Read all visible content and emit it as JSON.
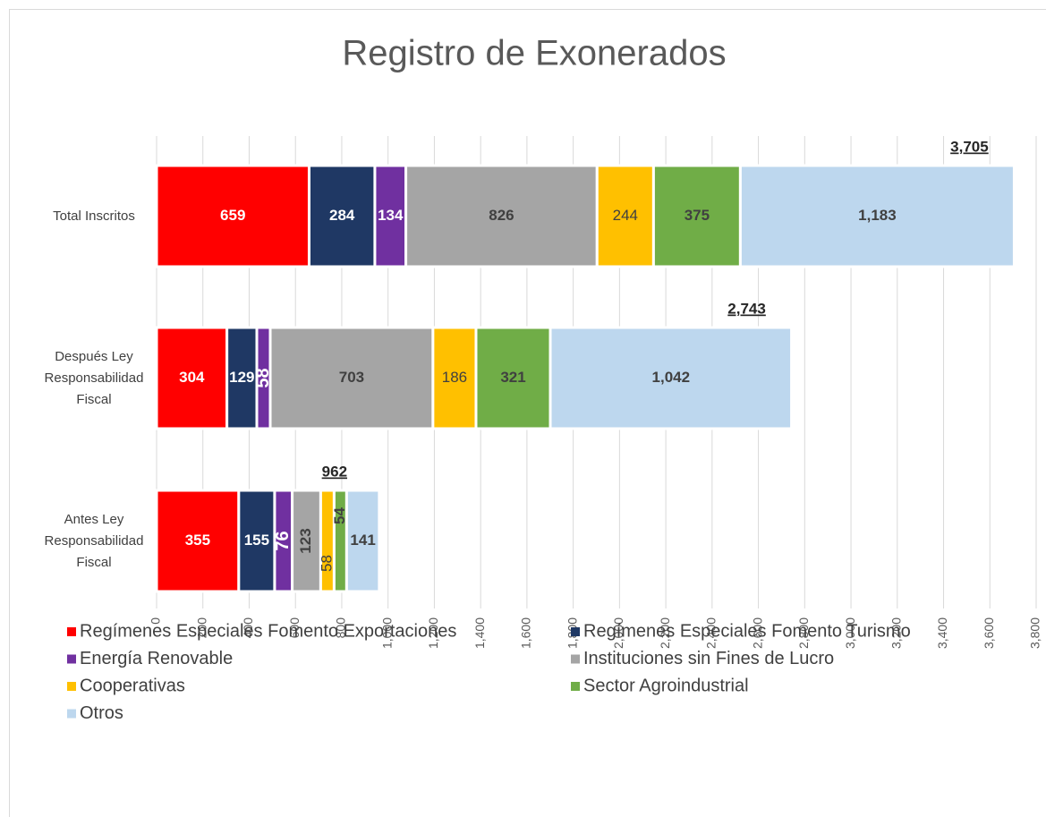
{
  "chart_data": {
    "type": "stacked_barh",
    "title": "Registro de Exonerados",
    "categories": [
      "Total Inscritos",
      "Después Ley Responsabilidad Fiscal",
      "Antes Ley Responsabilidad Fiscal"
    ],
    "series": [
      {
        "name": "Regímenes Especiales Fomento Exportaciones",
        "color": "#ff0000",
        "values": [
          659,
          304,
          355
        ]
      },
      {
        "name": "Regímenes Especiales Fomento Turismo",
        "color": "#1f3864",
        "values": [
          284,
          129,
          155
        ]
      },
      {
        "name": "Energía Renovable",
        "color": "#7030a0",
        "values": [
          134,
          58,
          76
        ]
      },
      {
        "name": "Instituciones sin Fines de Lucro",
        "color": "#a5a5a5",
        "values": [
          826,
          703,
          123
        ]
      },
      {
        "name": "Cooperativas",
        "color": "#ffc000",
        "values": [
          244,
          186,
          58
        ]
      },
      {
        "name": "Sector Agroindustrial",
        "color": "#70ad47",
        "values": [
          375,
          321,
          54
        ]
      },
      {
        "name": "Otros",
        "color": "#bdd7ee",
        "values": [
          1183,
          1042,
          141
        ],
        "value_labels": [
          "1,183",
          "1,042",
          "141"
        ]
      }
    ],
    "totals": [
      3705,
      2743,
      962
    ],
    "total_labels": [
      "3,705",
      "2,743",
      "962"
    ],
    "xlim": [
      0,
      3800
    ],
    "xticks": [
      0,
      200,
      400,
      600,
      800,
      {
        "value": 1000,
        "label": "1,000"
      },
      {
        "value": 1200,
        "label": "1,200"
      },
      {
        "value": 1400,
        "label": "1,400"
      },
      {
        "value": 1600,
        "label": "1,600"
      },
      {
        "value": 1800,
        "label": "1,800"
      },
      {
        "value": 2000,
        "label": "2,000"
      },
      {
        "value": 2200,
        "label": "2,200"
      },
      {
        "value": 2400,
        "label": "2,400"
      },
      {
        "value": 2600,
        "label": "2,600"
      },
      {
        "value": 2800,
        "label": "2,800"
      },
      {
        "value": 3000,
        "label": "3,000"
      },
      {
        "value": 3200,
        "label": "3,200"
      },
      {
        "value": 3400,
        "label": "3,400"
      },
      {
        "value": 3600,
        "label": "3,600"
      },
      {
        "value": 3800,
        "label": "3,800"
      }
    ],
    "grid": true,
    "legend": "bottom"
  }
}
